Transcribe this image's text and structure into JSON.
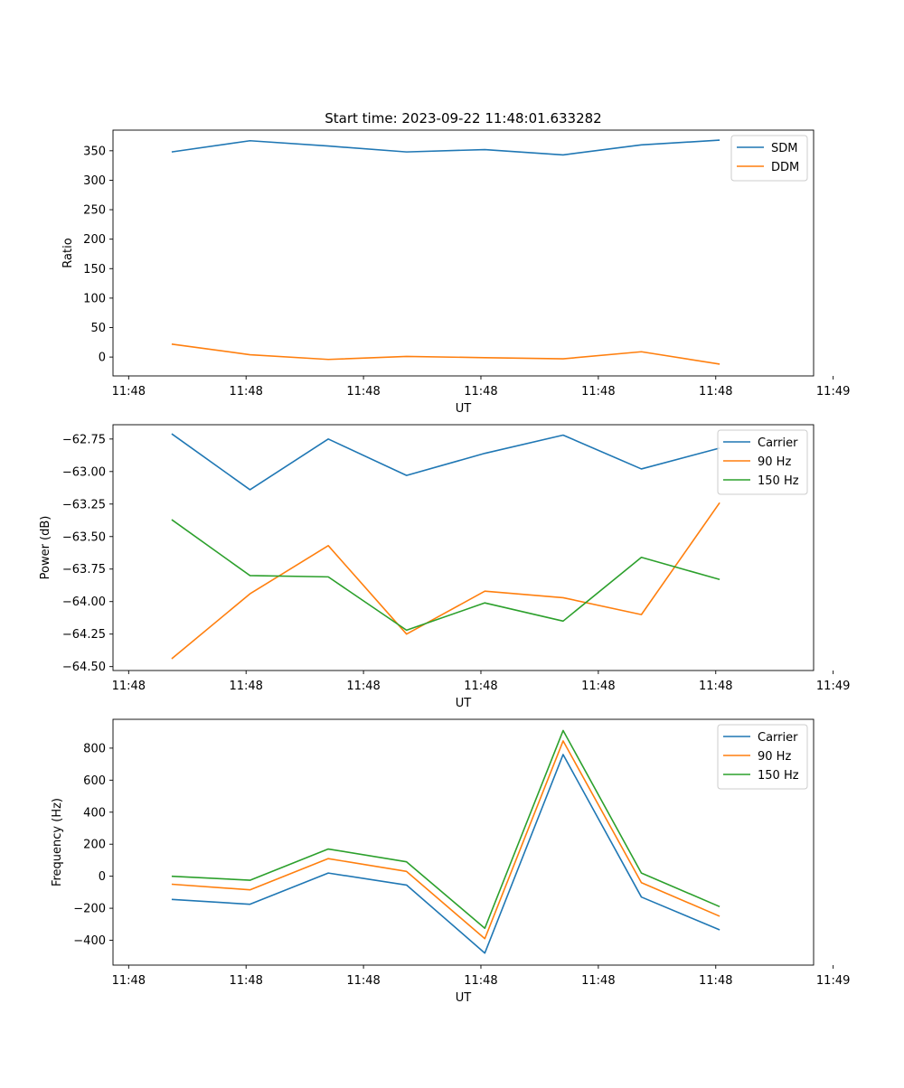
{
  "figure_title": "Start time: 2023-09-22 11:48:01.633282",
  "chart_data": [
    {
      "type": "line",
      "id": "ratio",
      "title": "Start time: 2023-09-22 11:48:01.633282",
      "xlabel": "UT",
      "ylabel": "Ratio",
      "x": [
        1,
        2,
        3,
        4,
        5,
        6,
        7,
        8
      ],
      "xlim": [
        0.25,
        9.2
      ],
      "xticks": [
        0.45,
        1.95,
        3.45,
        4.95,
        6.45,
        7.95,
        9.45
      ],
      "xtick_labels": [
        "11:48",
        "11:48",
        "11:48",
        "11:48",
        "11:48",
        "11:48",
        "11:49"
      ],
      "ylim": [
        -32,
        385
      ],
      "yticks": [
        0,
        50,
        100,
        150,
        200,
        250,
        300,
        350
      ],
      "ytick_labels": [
        "0",
        "50",
        "100",
        "150",
        "200",
        "250",
        "300",
        "350"
      ],
      "legend_position": "top-right",
      "series": [
        {
          "name": "SDM",
          "color": "#1f77b4",
          "values": [
            348,
            367,
            358,
            348,
            352,
            343,
            360,
            368
          ]
        },
        {
          "name": "DDM",
          "color": "#ff7f0e",
          "values": [
            22,
            4,
            -4,
            1,
            -1,
            -3,
            9,
            -12
          ]
        }
      ]
    },
    {
      "type": "line",
      "id": "power",
      "title": "",
      "xlabel": "UT",
      "ylabel": "Power (dB)",
      "x": [
        1,
        2,
        3,
        4,
        5,
        6,
        7,
        8
      ],
      "xlim": [
        0.25,
        9.2
      ],
      "xticks": [
        0.45,
        1.95,
        3.45,
        4.95,
        6.45,
        7.95,
        9.45
      ],
      "xtick_labels": [
        "11:48",
        "11:48",
        "11:48",
        "11:48",
        "11:48",
        "11:48",
        "11:49"
      ],
      "ylim": [
        -64.53,
        -62.64
      ],
      "yticks": [
        -64.5,
        -64.25,
        -64.0,
        -63.75,
        -63.5,
        -63.25,
        -63.0,
        -62.75
      ],
      "ytick_labels": [
        "−64.50",
        "−64.25",
        "−64.00",
        "−63.75",
        "−63.50",
        "−63.25",
        "−63.00",
        "−62.75"
      ],
      "legend_position": "top-right",
      "series": [
        {
          "name": "Carrier",
          "color": "#1f77b4",
          "values": [
            -62.71,
            -63.14,
            -62.75,
            -63.03,
            -62.86,
            -62.72,
            -62.98,
            -62.82
          ]
        },
        {
          "name": "90 Hz",
          "color": "#ff7f0e",
          "values": [
            -64.44,
            -63.94,
            -63.57,
            -64.25,
            -63.92,
            -63.97,
            -64.1,
            -63.24
          ]
        },
        {
          "name": "150 Hz",
          "color": "#2ca02c",
          "values": [
            -63.37,
            -63.8,
            -63.81,
            -64.22,
            -64.01,
            -64.15,
            -63.66,
            -63.83
          ]
        }
      ]
    },
    {
      "type": "line",
      "id": "frequency",
      "title": "",
      "xlabel": "UT",
      "ylabel": "Frequency (Hz)",
      "x": [
        1,
        2,
        3,
        4,
        5,
        6,
        7,
        8
      ],
      "xlim": [
        0.25,
        9.2
      ],
      "xticks": [
        0.45,
        1.95,
        3.45,
        4.95,
        6.45,
        7.95,
        9.45
      ],
      "xtick_labels": [
        "11:48",
        "11:48",
        "11:48",
        "11:48",
        "11:48",
        "11:48",
        "11:49"
      ],
      "ylim": [
        -555,
        980
      ],
      "yticks": [
        -400,
        -200,
        0,
        200,
        400,
        600,
        800
      ],
      "ytick_labels": [
        "−400",
        "−200",
        "0",
        "200",
        "400",
        "600",
        "800"
      ],
      "legend_position": "top-right",
      "series": [
        {
          "name": "Carrier",
          "color": "#1f77b4",
          "values": [
            -145,
            -175,
            20,
            -55,
            -480,
            760,
            -130,
            -335
          ]
        },
        {
          "name": "90 Hz",
          "color": "#ff7f0e",
          "values": [
            -50,
            -85,
            110,
            30,
            -390,
            845,
            -40,
            -250
          ]
        },
        {
          "name": "150 Hz",
          "color": "#2ca02c",
          "values": [
            0,
            -25,
            170,
            90,
            -325,
            910,
            20,
            -190
          ]
        }
      ]
    }
  ]
}
